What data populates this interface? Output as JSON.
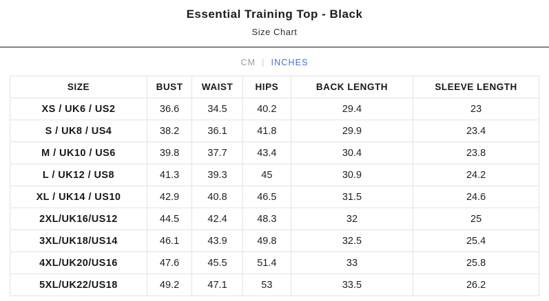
{
  "header": {
    "title": "Essential Training Top - Black",
    "subtitle": "Size Chart"
  },
  "units": {
    "cm_label": "CM",
    "separator": "|",
    "inches_label": "INCHES",
    "active": "INCHES",
    "active_color": "#4272d7",
    "inactive_color": "#9b9b9b"
  },
  "table": {
    "columns": [
      "SIZE",
      "BUST",
      "WAIST",
      "HIPS",
      "BACK LENGTH",
      "SLEEVE LENGTH"
    ],
    "rows": [
      [
        "XS / UK6 / US2",
        "36.6",
        "34.5",
        "40.2",
        "29.4",
        "23"
      ],
      [
        "S / UK8 / US4",
        "38.2",
        "36.1",
        "41.8",
        "29.9",
        "23.4"
      ],
      [
        "M / UK10 / US6",
        "39.8",
        "37.7",
        "43.4",
        "30.4",
        "23.8"
      ],
      [
        "L / UK12 / US8",
        "41.3",
        "39.3",
        "45",
        "30.9",
        "24.2"
      ],
      [
        "XL / UK14 / US10",
        "42.9",
        "40.8",
        "46.5",
        "31.5",
        "24.6"
      ],
      [
        "2XL/UK16/US12",
        "44.5",
        "42.4",
        "48.3",
        "32",
        "25"
      ],
      [
        "3XL/UK18/US14",
        "46.1",
        "43.9",
        "49.8",
        "32.5",
        "25.4"
      ],
      [
        "4XL/UK20/US16",
        "47.6",
        "45.5",
        "51.4",
        "33",
        "25.8"
      ],
      [
        "5XL/UK22/US18",
        "49.2",
        "47.1",
        "53",
        "33.5",
        "26.2"
      ]
    ],
    "border_color": "#e2e2e2"
  }
}
